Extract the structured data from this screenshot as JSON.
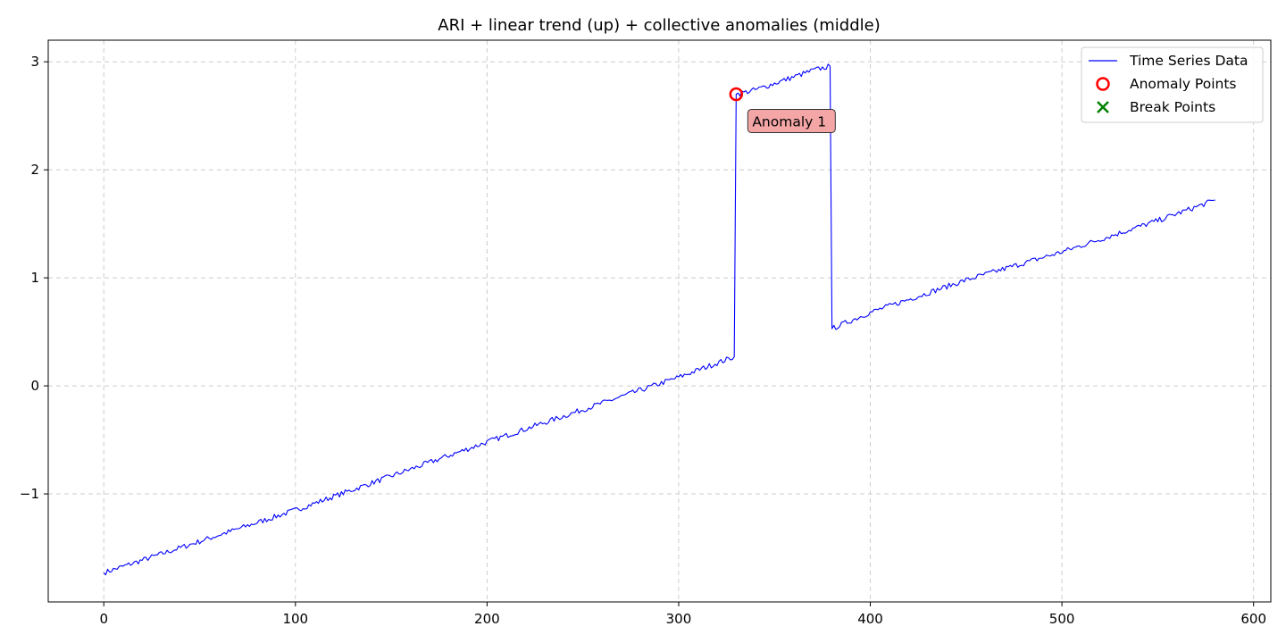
{
  "chart_data": {
    "type": "line",
    "title": "ARI + linear trend (up) + collective anomalies (middle)",
    "xlabel": "",
    "ylabel": "",
    "xlim": [
      -29,
      609
    ],
    "ylim": [
      -2.0,
      3.2
    ],
    "xticks": [
      0,
      100,
      200,
      300,
      400,
      500,
      600
    ],
    "xtick_labels": [
      "0",
      "100",
      "200",
      "300",
      "400",
      "500",
      "600"
    ],
    "yticks": [
      -1,
      0,
      1,
      2,
      3
    ],
    "ytick_labels": [
      "−1",
      "0",
      "1",
      "2",
      "3"
    ],
    "grid": true,
    "grid_style": "dashed",
    "legend_position": "top-right",
    "series": [
      {
        "name": "Time Series Data",
        "color": "#0000ff",
        "style": "line",
        "x_start": 0,
        "x_end": 580,
        "segments": [
          {
            "x": [
              0,
              100,
              200,
              300,
              329
            ],
            "y": [
              -1.73,
              -1.15,
              -0.52,
              0.08,
              0.27
            ]
          },
          {
            "x": [
              330,
              340,
              350,
              360,
              370,
              379
            ],
            "y": [
              2.7,
              2.74,
              2.8,
              2.86,
              2.92,
              2.96
            ]
          },
          {
            "x": [
              380,
              400,
              450,
              500,
              550,
              580
            ],
            "y": [
              0.53,
              0.68,
              0.98,
              1.24,
              1.53,
              1.72
            ]
          }
        ]
      },
      {
        "name": "Anomaly Points",
        "color": "#ff0000",
        "style": "hollow-circle",
        "points": [
          {
            "x": 330,
            "y": 2.7
          }
        ]
      },
      {
        "name": "Break Points",
        "color": "#008000",
        "style": "x-marker",
        "points": []
      }
    ],
    "annotations": [
      {
        "text": "Anomaly 1",
        "x": 330,
        "y": 2.7,
        "box_color": "#f4a6a6"
      }
    ]
  }
}
